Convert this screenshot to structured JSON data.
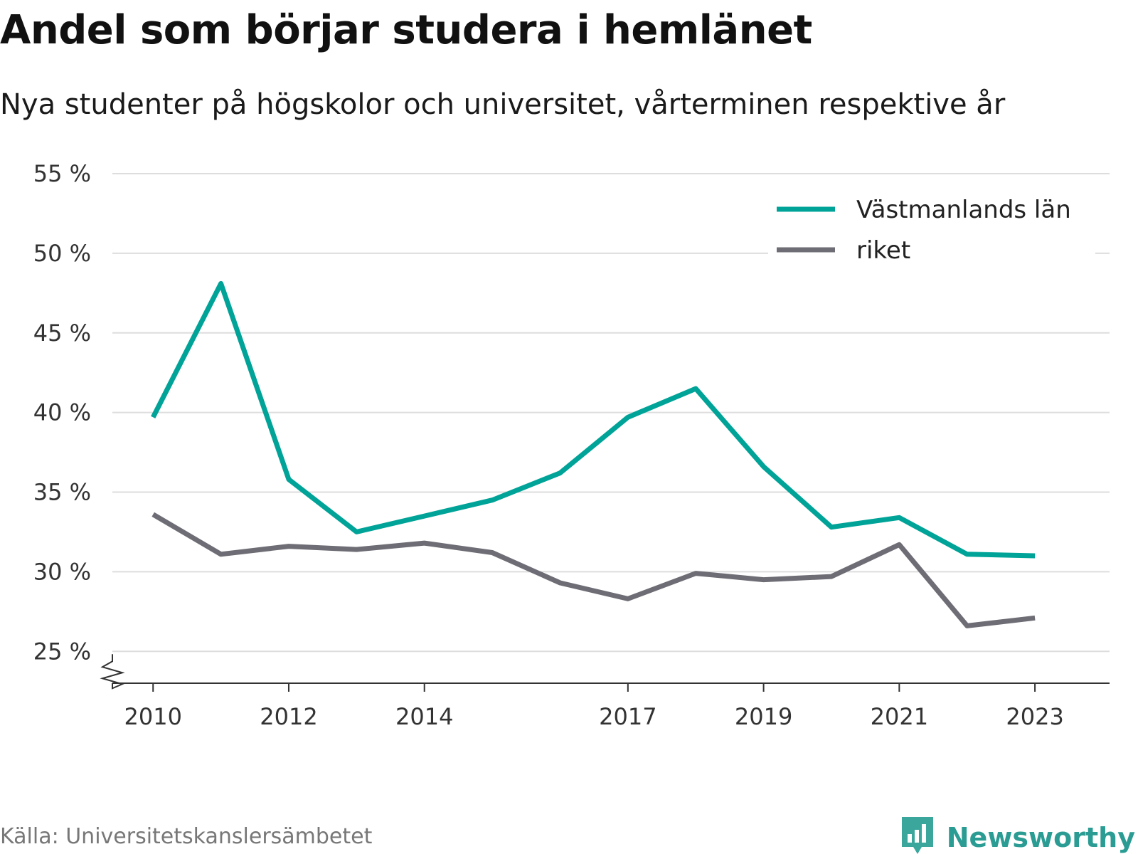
{
  "header": {
    "title": "Andel som börjar studera i hemlänet",
    "subtitle": "Nya studenter på högskolor och universitet, vårterminen respektive år"
  },
  "footer": {
    "source": "Källa: Universitetskanslersämbetet",
    "brand_name": "Newsworthy",
    "brand_icon": "newsworthy-logo-icon"
  },
  "colors": {
    "series_1": "#00a398",
    "series_2": "#6e6d75",
    "grid": "#dddddd",
    "axis": "#333333",
    "brand": "#2b9c93"
  },
  "chart_data": {
    "type": "line",
    "title": "Andel som börjar studera i hemlänet",
    "subtitle": "Nya studenter på högskolor och universitet, vårterminen respektive år",
    "xlabel": "",
    "ylabel": "",
    "x": [
      2010,
      2011,
      2012,
      2013,
      2014,
      2015,
      2016,
      2017,
      2018,
      2019,
      2020,
      2021,
      2022,
      2023
    ],
    "x_tick_values": [
      2010,
      2012,
      2014,
      2017,
      2019,
      2021,
      2023
    ],
    "x_tick_labels": [
      "2010",
      "2012",
      "2014",
      "2017",
      "2019",
      "2021",
      "2023"
    ],
    "y_tick_values": [
      25,
      30,
      35,
      40,
      45,
      50,
      55
    ],
    "y_tick_labels": [
      "25 %",
      "30 %",
      "35 %",
      "40 %",
      "45 %",
      "50 %",
      "55 %"
    ],
    "xlim": [
      2009.4,
      2024.1
    ],
    "ylim": [
      23,
      55
    ],
    "y_axis_break": true,
    "grid": true,
    "legend_position": "top-right",
    "series": [
      {
        "name": "Västmanlands län",
        "color": "#00a398",
        "values": [
          39.7,
          48.1,
          35.8,
          32.5,
          33.5,
          34.5,
          36.2,
          39.7,
          41.5,
          36.6,
          32.8,
          33.4,
          31.1,
          31.0
        ]
      },
      {
        "name": "riket",
        "color": "#6e6d75",
        "values": [
          33.6,
          31.1,
          31.6,
          31.4,
          31.8,
          31.2,
          29.3,
          28.3,
          29.9,
          29.5,
          29.7,
          31.7,
          26.6,
          27.1
        ]
      }
    ]
  }
}
